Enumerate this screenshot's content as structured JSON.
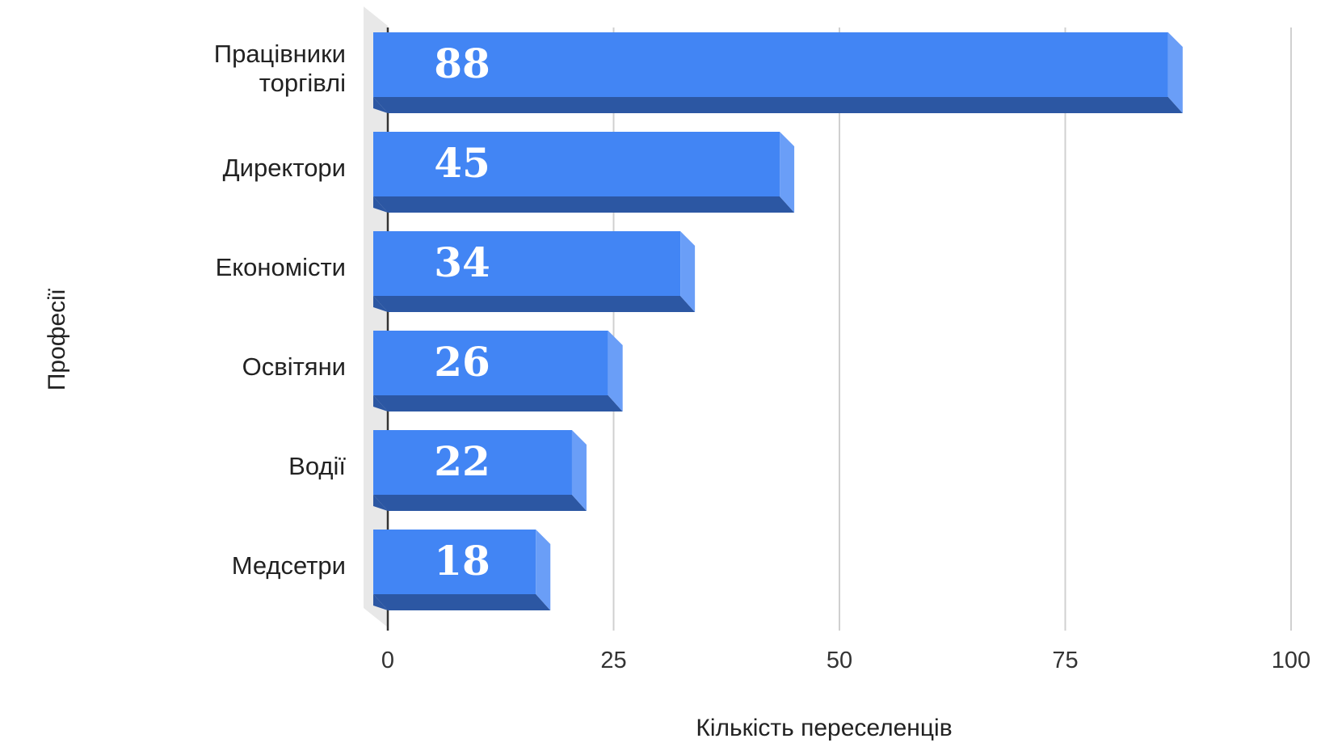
{
  "chart_data": {
    "type": "bar",
    "orientation": "horizontal",
    "style": "3d",
    "categories": [
      [
        "Працівники",
        "торгівлі"
      ],
      [
        "Директори"
      ],
      [
        "Економісти"
      ],
      [
        "Освітяни"
      ],
      [
        "Водії"
      ],
      [
        "Медсетри"
      ]
    ],
    "values": [
      88,
      45,
      34,
      26,
      22,
      18
    ],
    "data_labels": [
      "88",
      "45",
      "34",
      "26",
      "22",
      "18"
    ],
    "xlabel": "Кількість переселенців",
    "ylabel": "Професії",
    "xlim": [
      0,
      100
    ],
    "xticks": [
      "0",
      "25",
      "50",
      "75",
      "100"
    ],
    "grid": true,
    "colors": {
      "bar_front": "#4285f4",
      "bar_bottom": "#2c57a3",
      "bar_side": "#6a9ef7",
      "floor": "#e8e8e8",
      "grid": "#d0d0d0",
      "axis": "#333333"
    }
  }
}
